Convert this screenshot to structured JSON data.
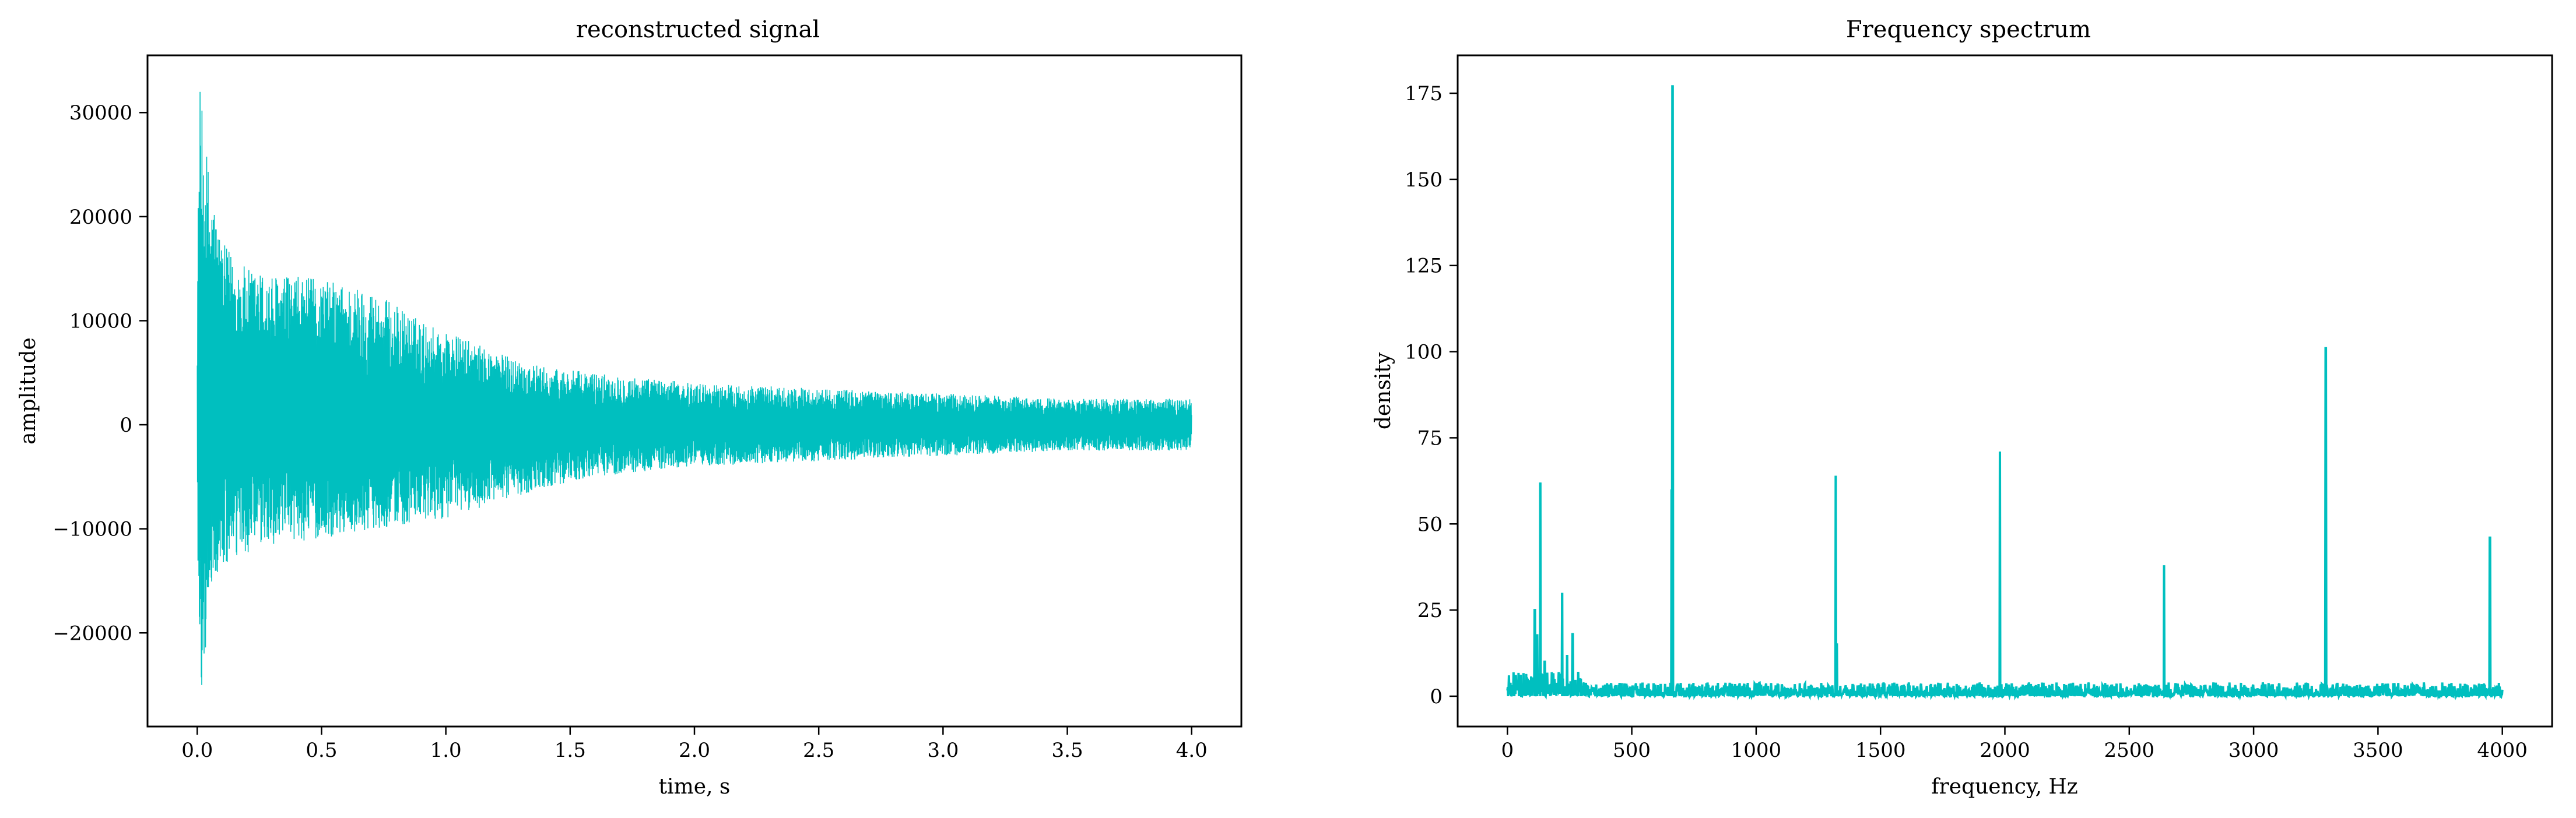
{
  "chart_data": [
    {
      "type": "line",
      "title": "reconstructed signal",
      "xlabel": "time, s",
      "ylabel": "amplitude",
      "xlim": [
        -0.2,
        4.2
      ],
      "ylim": [
        -29000,
        35500
      ],
      "xticks": [
        0.0,
        0.5,
        1.0,
        1.5,
        2.0,
        2.5,
        3.0,
        3.5,
        4.0
      ],
      "xtick_labels": [
        "0.0",
        "0.5",
        "1.0",
        "1.5",
        "2.0",
        "2.5",
        "3.0",
        "3.5",
        "4.0"
      ],
      "yticks": [
        -20000,
        -10000,
        0,
        10000,
        20000,
        30000
      ],
      "ytick_labels": [
        "−20000",
        "−10000",
        "0",
        "10000",
        "20000",
        "30000"
      ],
      "grid": false,
      "color": "#00bfbf",
      "envelope": {
        "t": [
          0.0,
          0.01,
          0.02,
          0.05,
          0.1,
          0.2,
          0.3,
          0.5,
          0.7,
          0.9,
          1.0,
          1.2,
          1.4,
          1.6,
          1.8,
          2.0,
          2.5,
          3.0,
          3.5,
          4.0
        ],
        "upper": [
          15000,
          33000,
          30000,
          24000,
          17500,
          15000,
          14500,
          14000,
          13000,
          10000,
          9000,
          7000,
          5500,
          5000,
          4500,
          4000,
          3500,
          3000,
          2500,
          2500
        ],
        "lower": [
          -14000,
          -22000,
          -26500,
          -16000,
          -14000,
          -12500,
          -11500,
          -11000,
          -10000,
          -9500,
          -9000,
          -7500,
          -6000,
          -5000,
          -4500,
          -4000,
          -3500,
          -3000,
          -2500,
          -2500
        ]
      }
    },
    {
      "type": "line",
      "title": "Frequency spectrum",
      "xlabel": "frequency, Hz",
      "ylabel": "density",
      "xlim": [
        -200,
        4200
      ],
      "ylim": [
        -8.8,
        186
      ],
      "xticks": [
        0,
        500,
        1000,
        1500,
        2000,
        2500,
        3000,
        3500,
        4000
      ],
      "xtick_labels": [
        "0",
        "500",
        "1000",
        "1500",
        "2000",
        "2500",
        "3000",
        "3500",
        "4000"
      ],
      "yticks": [
        0,
        25,
        50,
        75,
        100,
        125,
        150,
        175
      ],
      "ytick_labels": [
        "0",
        "25",
        "50",
        "75",
        "100",
        "125",
        "150",
        "175"
      ],
      "grid": false,
      "color": "#00bfbf",
      "peaks": {
        "x": [
          110,
          120,
          132,
          150,
          220,
          240,
          262,
          660,
          664,
          1320,
          1324,
          1980,
          2640,
          3290,
          3950
        ],
        "y": [
          25,
          18,
          62,
          10,
          30,
          12,
          18,
          60,
          177,
          64,
          15,
          71,
          38,
          101,
          46
        ]
      },
      "noise_floor": 4
    }
  ]
}
